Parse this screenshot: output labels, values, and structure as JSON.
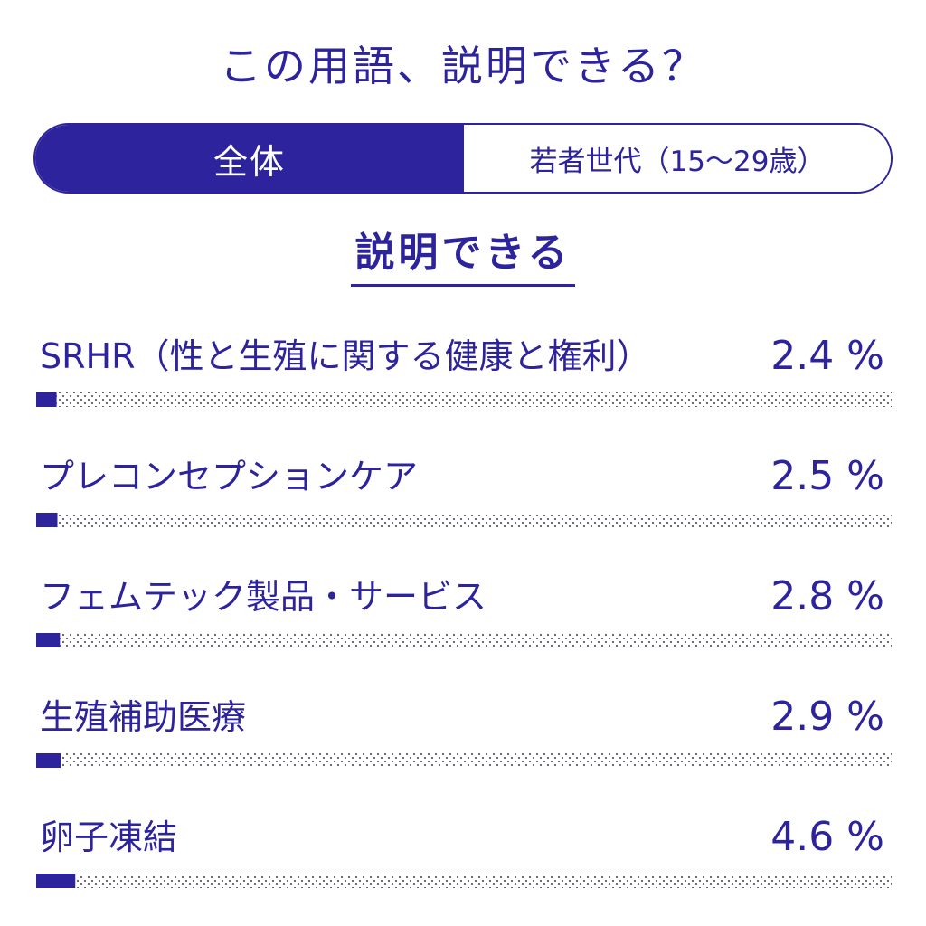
{
  "title": "この用語、説明できる？",
  "toggle": {
    "all_label": "全体",
    "young_label": "若者世代（15～29歳）"
  },
  "subtitle": "説明できる",
  "colors": {
    "accent": "#2d249d",
    "dots": "#5a5a6a",
    "background": "#ffffff"
  },
  "chart_data": {
    "type": "bar",
    "orientation": "horizontal",
    "categories": [
      "SRHR（性と生殖に関する健康と権利）",
      "プレコンセプションケア",
      "フェムテック製品・サービス",
      "生殖補助医療",
      "卵子凍結"
    ],
    "values": [
      2.4,
      2.5,
      2.8,
      2.9,
      4.6
    ],
    "value_labels": [
      "2.4 %",
      "2.5 %",
      "2.8 %",
      "2.9 %",
      "4.6 %"
    ],
    "unit": "%",
    "xlim": [
      0,
      100
    ]
  }
}
